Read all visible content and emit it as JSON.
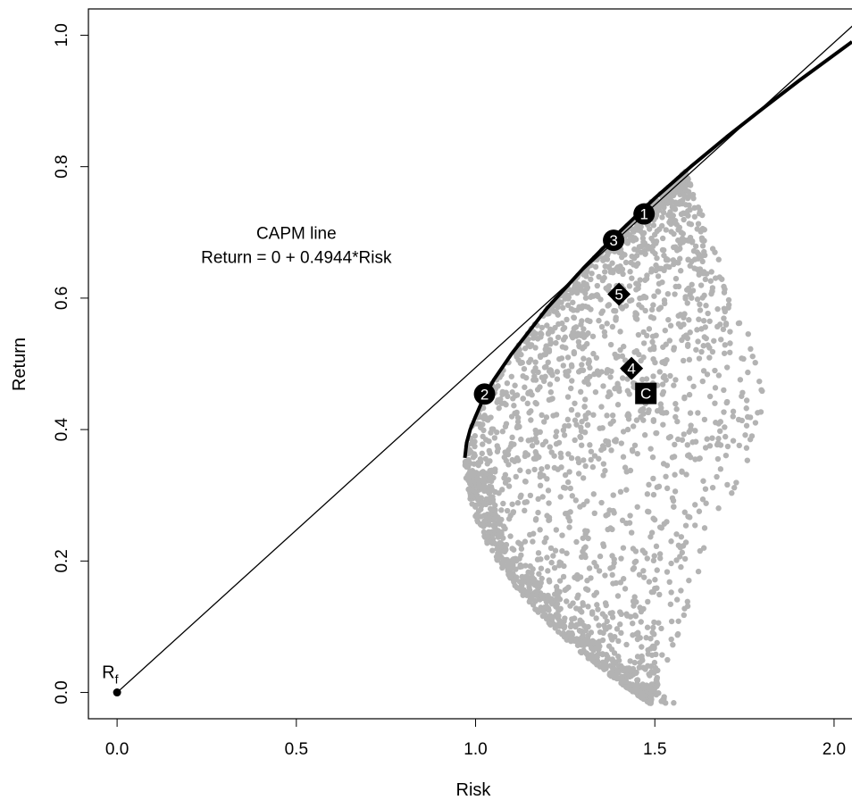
{
  "chart_data": {
    "type": "scatter",
    "xlabel": "Risk",
    "ylabel": "Return",
    "xlim": [
      -0.08,
      2.05
    ],
    "ylim": [
      -0.04,
      1.04
    ],
    "x_ticks": [
      0.0,
      0.5,
      1.0,
      1.5,
      2.0
    ],
    "x_tick_labels": [
      "0.0",
      "0.5",
      "1.0",
      "1.5",
      "2.0"
    ],
    "y_ticks": [
      0.0,
      0.2,
      0.4,
      0.6,
      0.8,
      1.0
    ],
    "y_tick_labels": [
      "0.0",
      "0.2",
      "0.4",
      "0.6",
      "0.8",
      "1.0"
    ],
    "annotation": {
      "line1": "CAPM line",
      "line2": "Return = 0 + 0.4944*Risk",
      "x": 0.5,
      "y": 0.7
    },
    "capm_line": {
      "intercept": 0,
      "slope": 0.4944
    },
    "risk_free": {
      "label_main": "R",
      "label_sub": "f",
      "x": 0.0,
      "y": 0.0
    },
    "frontier": [
      [
        0.97,
        0.357
      ],
      [
        0.975,
        0.38
      ],
      [
        0.985,
        0.4
      ],
      [
        1.0,
        0.42
      ],
      [
        1.02,
        0.445
      ],
      [
        1.05,
        0.475
      ],
      [
        1.1,
        0.515
      ],
      [
        1.15,
        0.55
      ],
      [
        1.2,
        0.585
      ],
      [
        1.25,
        0.615
      ],
      [
        1.3,
        0.645
      ],
      [
        1.35,
        0.673
      ],
      [
        1.4,
        0.7
      ],
      [
        1.45,
        0.726
      ],
      [
        1.5,
        0.752
      ],
      [
        1.6,
        0.8
      ],
      [
        1.7,
        0.845
      ],
      [
        1.8,
        0.888
      ],
      [
        1.9,
        0.93
      ],
      [
        2.05,
        0.99
      ]
    ],
    "cloud_color": "#b3b3b3",
    "marked_portfolios": [
      {
        "label": "1",
        "shape": "circle",
        "x": 1.47,
        "y": 0.728
      },
      {
        "label": "2",
        "shape": "circle",
        "x": 1.025,
        "y": 0.454
      },
      {
        "label": "3",
        "shape": "circle",
        "x": 1.385,
        "y": 0.688
      },
      {
        "label": "4",
        "shape": "diamond",
        "x": 1.435,
        "y": 0.493
      },
      {
        "label": "5",
        "shape": "diamond",
        "x": 1.4,
        "y": 0.606
      },
      {
        "label": "C",
        "shape": "square",
        "x": 1.475,
        "y": 0.455
      }
    ]
  }
}
